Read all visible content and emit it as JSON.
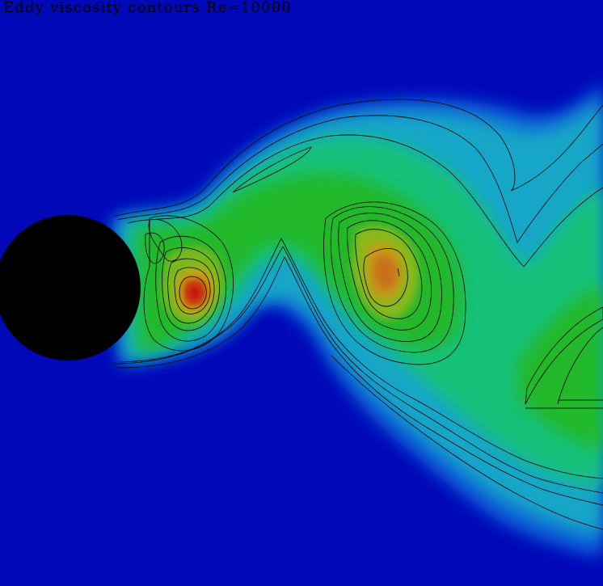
{
  "title": "Eddy viscosity contours  Re=10000",
  "colors": {
    "background": "#0008b8",
    "cylinder": "#000000",
    "contour_line": "#000000",
    "colormap": [
      "#0008b8",
      "#0d46d8",
      "#10a8c8",
      "#18c07a",
      "#20b82a",
      "#7ab81a",
      "#c8a818",
      "#c85210",
      "#c80c08"
    ]
  },
  "legend": null
}
